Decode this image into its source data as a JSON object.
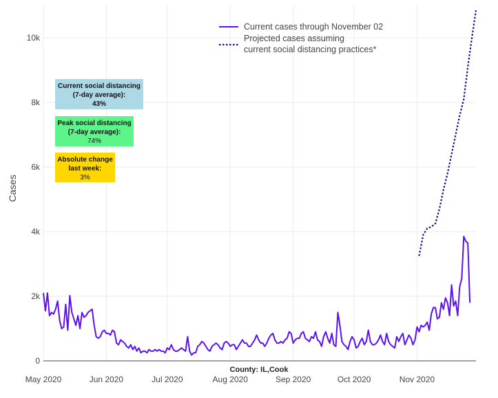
{
  "chart_data": {
    "type": "line",
    "xlabel": "County: IL,Cook",
    "ylabel": "Cases",
    "x_range": [
      "2020-05-01",
      "2020-11-30"
    ],
    "ylim": [
      0,
      11000
    ],
    "grid": true,
    "legend_position": "top-right",
    "x_ticks": [
      {
        "date": "2020-05-01",
        "label": "May 2020"
      },
      {
        "date": "2020-06-01",
        "label": "Jun 2020"
      },
      {
        "date": "2020-07-01",
        "label": "Jul 2020"
      },
      {
        "date": "2020-08-01",
        "label": "Aug 2020"
      },
      {
        "date": "2020-09-01",
        "label": "Sep 2020"
      },
      {
        "date": "2020-10-01",
        "label": "Oct 2020"
      },
      {
        "date": "2020-11-01",
        "label": "Nov 2020"
      }
    ],
    "y_ticks": [
      {
        "value": 0,
        "label": "0"
      },
      {
        "value": 2000,
        "label": "2k"
      },
      {
        "value": 4000,
        "label": "4k"
      },
      {
        "value": 6000,
        "label": "6k"
      },
      {
        "value": 8000,
        "label": "8k"
      },
      {
        "value": 10000,
        "label": "10k"
      }
    ],
    "series": [
      {
        "name": "Current cases through November 02",
        "style": "solid",
        "color": "#5b10f0",
        "x_start": "2020-05-01",
        "values": [
          2100,
          1550,
          2100,
          1400,
          1500,
          1450,
          1600,
          1850,
          1250,
          1000,
          1050,
          1750,
          950,
          2020,
          1500,
          1300,
          1100,
          1400,
          1000,
          1500,
          1350,
          1400,
          1500,
          1550,
          1600,
          1100,
          750,
          700,
          750,
          900,
          950,
          850,
          850,
          800,
          950,
          900,
          550,
          500,
          650,
          600,
          550,
          450,
          400,
          500,
          350,
          450,
          300,
          400,
          250,
          300,
          300,
          250,
          350,
          300,
          300,
          350,
          300,
          350,
          300,
          300,
          250,
          400,
          350,
          500,
          350,
          300,
          300,
          350,
          400,
          350,
          300,
          750,
          300,
          180,
          250,
          250,
          450,
          500,
          600,
          550,
          450,
          350,
          300,
          450,
          500,
          550,
          500,
          400,
          350,
          550,
          600,
          550,
          450,
          500,
          500,
          350,
          450,
          550,
          650,
          550,
          550,
          450,
          450,
          550,
          650,
          800,
          650,
          550,
          550,
          450,
          550,
          700,
          800,
          850,
          650,
          550,
          550,
          600,
          550,
          650,
          700,
          900,
          850,
          550,
          650,
          700,
          700,
          850,
          900,
          700,
          650,
          600,
          750,
          700,
          900,
          650,
          600,
          450,
          750,
          900,
          700,
          550,
          850,
          500,
          450,
          1500,
          1100,
          600,
          500,
          450,
          350,
          600,
          750,
          650,
          400,
          450,
          600,
          700,
          500,
          600,
          950,
          600,
          500,
          500,
          550,
          650,
          800,
          600,
          500,
          850,
          600,
          500,
          450,
          400,
          750,
          600,
          750,
          850,
          500,
          650,
          800,
          700,
          500,
          650,
          1050,
          900,
          1100,
          1050,
          1100,
          1200,
          950,
          1450,
          1650,
          1650,
          1300,
          1350,
          1800,
          1600,
          1950,
          1800,
          1400,
          2350,
          1700,
          1850,
          1400,
          2300,
          2550,
          3850,
          3700,
          3650,
          1800
        ]
      },
      {
        "name": "Projected cases assuming current social distancing practices*",
        "style": "dotted",
        "color": "#1a0a8c",
        "points": [
          [
            "2020-11-02",
            3250
          ],
          [
            "2020-11-04",
            3900
          ],
          [
            "2020-11-06",
            4100
          ],
          [
            "2020-11-08",
            4150
          ],
          [
            "2020-11-10",
            4250
          ],
          [
            "2020-11-12",
            4700
          ],
          [
            "2020-11-14",
            5300
          ],
          [
            "2020-11-16",
            5800
          ],
          [
            "2020-11-18",
            6400
          ],
          [
            "2020-11-20",
            7000
          ],
          [
            "2020-11-22",
            7600
          ],
          [
            "2020-11-24",
            8100
          ],
          [
            "2020-11-26",
            9100
          ],
          [
            "2020-11-28",
            10000
          ],
          [
            "2020-11-30",
            10850
          ]
        ]
      }
    ],
    "annotations": [
      {
        "lines": [
          "Current social distancing",
          "(7-day average):",
          "43%"
        ],
        "bold_lines": 3,
        "bg": "#add8e6"
      },
      {
        "lines": [
          "Peak social distancing",
          "(7-day average):",
          "74%"
        ],
        "bold_lines": 2,
        "bg": "#5df58a"
      },
      {
        "lines": [
          "Absolute change",
          "last week:",
          "3%"
        ],
        "bold_lines": 2,
        "bg": "#ffd700"
      }
    ]
  }
}
